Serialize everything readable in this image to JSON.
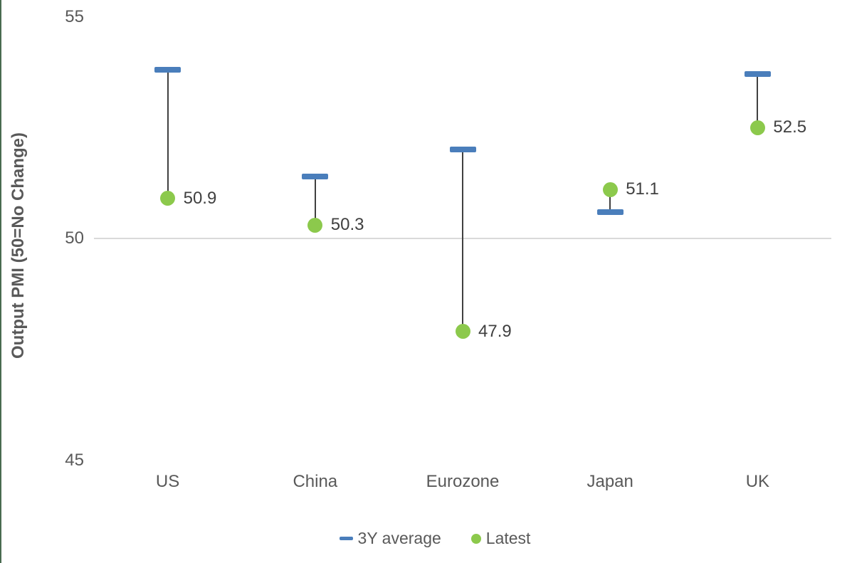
{
  "chart_data": {
    "type": "scatter",
    "subtype": "dumbbell-range",
    "categories": [
      "US",
      "China",
      "Eurozone",
      "Japan",
      "UK"
    ],
    "series": [
      {
        "name": "3Y average",
        "marker": "dash",
        "color": "#4A7EBB",
        "values": [
          53.8,
          51.4,
          52.0,
          50.6,
          53.7
        ]
      },
      {
        "name": "Latest",
        "marker": "circle",
        "color": "#8CC94C",
        "values": [
          50.9,
          50.3,
          47.9,
          51.1,
          52.5
        ]
      }
    ],
    "data_labels": [
      "50.9",
      "50.3",
      "47.9",
      "51.1",
      "52.5"
    ],
    "data_labels_series": "Latest",
    "title": "",
    "xlabel": "",
    "ylabel": "Output PMI (50=No Change)",
    "yticks": [
      "55",
      "50",
      "45"
    ],
    "ytick_values": [
      55,
      50,
      45
    ],
    "ylim": [
      44.6,
      55.2
    ],
    "gridlines": [
      50
    ],
    "grid": "single-line-at-50",
    "legend_position": "bottom-center",
    "colors": {
      "connector": "#404040",
      "gridline": "#d9d9d9",
      "tick_text": "#595959",
      "data_label_text": "#404040",
      "page_left_border": "#4a6b50"
    }
  }
}
